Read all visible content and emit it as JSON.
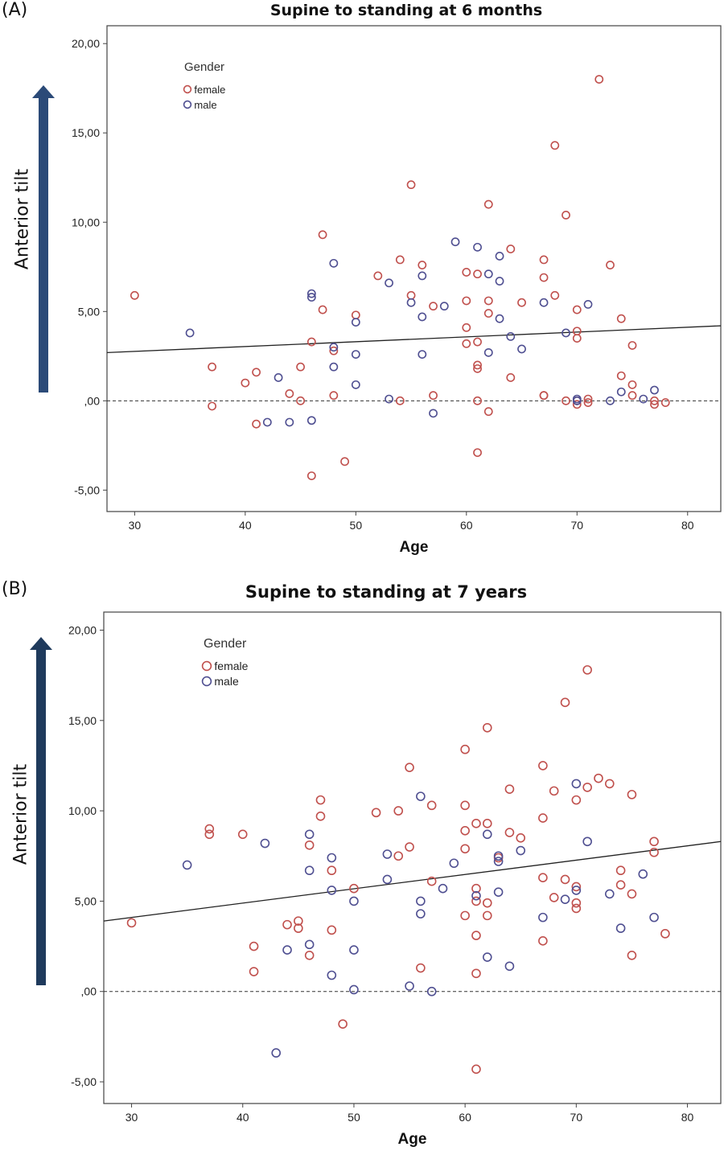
{
  "colors": {
    "female": "#c0504d",
    "male": "#4f4f91",
    "arrow_a": "#2b4a78",
    "arrow_b": "#1f3a5c"
  },
  "chart_data": [
    {
      "panel_label": "(A)",
      "type": "scatter",
      "title": "Supine to standing at 6 months",
      "xlabel": "Age",
      "ylabel": "Anterior tilt",
      "xlim": [
        27.5,
        83
      ],
      "ylim": [
        -6.2,
        21
      ],
      "x_ticks": [
        "30",
        "40",
        "50",
        "60",
        "70",
        "80"
      ],
      "x_tick_values": [
        30,
        40,
        50,
        60,
        70,
        80
      ],
      "y_ticks": [
        "-5,00",
        ",00",
        "5,00",
        "10,00",
        "15,00",
        "20,00"
      ],
      "y_tick_values": [
        -5,
        0,
        5,
        10,
        15,
        20
      ],
      "legend": {
        "title": "Gender",
        "entries": [
          "female",
          "male"
        ],
        "position": "top-left"
      },
      "fit_line": {
        "x": [
          27.5,
          83
        ],
        "y": [
          2.7,
          4.2
        ]
      },
      "reference_line": {
        "y": 0,
        "style": "dashed"
      },
      "grid": false,
      "series": [
        {
          "name": "female",
          "points": [
            [
              30,
              5.9
            ],
            [
              37,
              1.9
            ],
            [
              37,
              -0.3
            ],
            [
              40,
              1.0
            ],
            [
              41,
              1.6
            ],
            [
              41,
              -1.3
            ],
            [
              44,
              0.4
            ],
            [
              45,
              0.0
            ],
            [
              45,
              1.9
            ],
            [
              46,
              -4.2
            ],
            [
              46,
              3.3
            ],
            [
              47,
              9.3
            ],
            [
              47,
              5.1
            ],
            [
              48,
              2.8
            ],
            [
              48,
              0.3
            ],
            [
              49,
              -3.4
            ],
            [
              50,
              4.8
            ],
            [
              52,
              7.0
            ],
            [
              54,
              7.9
            ],
            [
              54,
              0.0
            ],
            [
              55,
              12.1
            ],
            [
              55,
              5.9
            ],
            [
              56,
              7.6
            ],
            [
              57,
              5.3
            ],
            [
              57,
              0.3
            ],
            [
              60,
              7.2
            ],
            [
              60,
              5.6
            ],
            [
              60,
              4.1
            ],
            [
              60,
              3.2
            ],
            [
              61,
              7.1
            ],
            [
              61,
              3.3
            ],
            [
              61,
              2.0
            ],
            [
              61,
              1.8
            ],
            [
              61,
              0.0
            ],
            [
              61,
              -2.9
            ],
            [
              62,
              11.0
            ],
            [
              62,
              5.6
            ],
            [
              62,
              4.9
            ],
            [
              62,
              -0.6
            ],
            [
              64,
              8.5
            ],
            [
              64,
              1.3
            ],
            [
              65,
              5.5
            ],
            [
              67,
              7.9
            ],
            [
              67,
              6.9
            ],
            [
              67,
              0.3
            ],
            [
              67,
              0.3
            ],
            [
              68,
              14.3
            ],
            [
              68,
              5.9
            ],
            [
              69,
              10.4
            ],
            [
              69,
              0.0
            ],
            [
              70,
              5.1
            ],
            [
              70,
              3.9
            ],
            [
              70,
              3.5
            ],
            [
              70,
              0.0
            ],
            [
              70,
              -0.2
            ],
            [
              71,
              0.1
            ],
            [
              71,
              -0.1
            ],
            [
              72,
              18.0
            ],
            [
              73,
              7.6
            ],
            [
              74,
              4.6
            ],
            [
              74,
              1.4
            ],
            [
              75,
              3.1
            ],
            [
              75,
              0.9
            ],
            [
              75,
              0.3
            ],
            [
              77,
              0.0
            ],
            [
              77,
              -0.2
            ],
            [
              78,
              -0.1
            ]
          ]
        },
        {
          "name": "male",
          "points": [
            [
              35,
              3.8
            ],
            [
              42,
              -1.2
            ],
            [
              43,
              1.3
            ],
            [
              44,
              -1.2
            ],
            [
              46,
              6.0
            ],
            [
              46,
              5.8
            ],
            [
              46,
              -1.1
            ],
            [
              48,
              7.7
            ],
            [
              48,
              3.0
            ],
            [
              48,
              1.9
            ],
            [
              50,
              4.4
            ],
            [
              50,
              2.6
            ],
            [
              50,
              0.9
            ],
            [
              53,
              6.6
            ],
            [
              53,
              0.1
            ],
            [
              55,
              5.5
            ],
            [
              56,
              7.0
            ],
            [
              56,
              4.7
            ],
            [
              56,
              2.6
            ],
            [
              57,
              -0.7
            ],
            [
              58,
              5.3
            ],
            [
              59,
              8.9
            ],
            [
              61,
              8.6
            ],
            [
              62,
              7.1
            ],
            [
              62,
              2.7
            ],
            [
              63,
              8.1
            ],
            [
              63,
              6.7
            ],
            [
              63,
              4.6
            ],
            [
              64,
              3.6
            ],
            [
              65,
              2.9
            ],
            [
              67,
              5.5
            ],
            [
              69,
              3.8
            ],
            [
              70,
              0.1
            ],
            [
              70,
              0.0
            ],
            [
              71,
              5.4
            ],
            [
              73,
              0.0
            ],
            [
              74,
              0.5
            ],
            [
              76,
              0.1
            ],
            [
              77,
              0.6
            ]
          ]
        }
      ]
    },
    {
      "panel_label": "(B)",
      "type": "scatter",
      "title": "Supine to standing at 7 years",
      "xlabel": "Age",
      "ylabel": "Anterior tilt",
      "xlim": [
        27.5,
        83
      ],
      "ylim": [
        -6.2,
        21
      ],
      "x_ticks": [
        "30",
        "40",
        "50",
        "60",
        "70",
        "80"
      ],
      "x_tick_values": [
        30,
        40,
        50,
        60,
        70,
        80
      ],
      "y_ticks": [
        "-5,00",
        ",00",
        "5,00",
        "10,00",
        "15,00",
        "20,00"
      ],
      "y_tick_values": [
        -5,
        0,
        5,
        10,
        15,
        20
      ],
      "legend": {
        "title": "Gender",
        "entries": [
          "female",
          "male"
        ],
        "position": "top-left"
      },
      "fit_line": {
        "x": [
          27.5,
          83
        ],
        "y": [
          3.9,
          8.3
        ]
      },
      "reference_line": {
        "y": 0,
        "style": "dashed"
      },
      "grid": false,
      "series": [
        {
          "name": "female",
          "points": [
            [
              30,
              3.8
            ],
            [
              37,
              9.0
            ],
            [
              37,
              8.7
            ],
            [
              40,
              8.7
            ],
            [
              41,
              2.5
            ],
            [
              41,
              1.1
            ],
            [
              44,
              3.7
            ],
            [
              45,
              3.9
            ],
            [
              45,
              3.5
            ],
            [
              46,
              8.1
            ],
            [
              46,
              2.0
            ],
            [
              47,
              10.6
            ],
            [
              47,
              9.7
            ],
            [
              48,
              6.7
            ],
            [
              48,
              3.4
            ],
            [
              49,
              -1.8
            ],
            [
              50,
              5.7
            ],
            [
              52,
              9.9
            ],
            [
              54,
              10.0
            ],
            [
              54,
              7.5
            ],
            [
              55,
              12.4
            ],
            [
              55,
              8.0
            ],
            [
              56,
              1.3
            ],
            [
              57,
              10.3
            ],
            [
              57,
              6.1
            ],
            [
              60,
              13.4
            ],
            [
              60,
              10.3
            ],
            [
              60,
              8.9
            ],
            [
              60,
              7.9
            ],
            [
              60,
              4.2
            ],
            [
              61,
              9.3
            ],
            [
              61,
              5.7
            ],
            [
              61,
              5.0
            ],
            [
              61,
              3.1
            ],
            [
              61,
              1.0
            ],
            [
              61,
              -4.3
            ],
            [
              62,
              14.6
            ],
            [
              62,
              9.3
            ],
            [
              62,
              4.9
            ],
            [
              62,
              4.2
            ],
            [
              63,
              7.4
            ],
            [
              64,
              11.2
            ],
            [
              64,
              8.8
            ],
            [
              65,
              8.5
            ],
            [
              67,
              12.5
            ],
            [
              67,
              9.6
            ],
            [
              67,
              6.3
            ],
            [
              67,
              2.8
            ],
            [
              68,
              11.1
            ],
            [
              68,
              5.2
            ],
            [
              69,
              16.0
            ],
            [
              69,
              6.2
            ],
            [
              70,
              10.6
            ],
            [
              70,
              5.8
            ],
            [
              70,
              4.9
            ],
            [
              70,
              4.6
            ],
            [
              71,
              17.8
            ],
            [
              71,
              11.3
            ],
            [
              72,
              11.8
            ],
            [
              73,
              11.5
            ],
            [
              74,
              6.7
            ],
            [
              74,
              5.9
            ],
            [
              75,
              10.9
            ],
            [
              75,
              5.4
            ],
            [
              75,
              2.0
            ],
            [
              77,
              8.3
            ],
            [
              77,
              7.7
            ],
            [
              78,
              3.2
            ]
          ]
        },
        {
          "name": "male",
          "points": [
            [
              35,
              7.0
            ],
            [
              42,
              8.2
            ],
            [
              43,
              -3.4
            ],
            [
              44,
              2.3
            ],
            [
              46,
              8.7
            ],
            [
              46,
              6.7
            ],
            [
              46,
              2.6
            ],
            [
              48,
              7.4
            ],
            [
              48,
              5.6
            ],
            [
              48,
              0.9
            ],
            [
              50,
              5.0
            ],
            [
              50,
              2.3
            ],
            [
              50,
              0.1
            ],
            [
              53,
              7.6
            ],
            [
              53,
              6.2
            ],
            [
              55,
              0.3
            ],
            [
              56,
              10.8
            ],
            [
              56,
              5.0
            ],
            [
              56,
              4.3
            ],
            [
              57,
              0.0
            ],
            [
              58,
              5.7
            ],
            [
              59,
              7.1
            ],
            [
              61,
              5.3
            ],
            [
              62,
              8.7
            ],
            [
              62,
              1.9
            ],
            [
              63,
              7.5
            ],
            [
              63,
              7.2
            ],
            [
              63,
              5.5
            ],
            [
              64,
              1.4
            ],
            [
              65,
              7.8
            ],
            [
              67,
              4.1
            ],
            [
              69,
              5.1
            ],
            [
              70,
              11.5
            ],
            [
              70,
              5.6
            ],
            [
              71,
              8.3
            ],
            [
              73,
              5.4
            ],
            [
              74,
              3.5
            ],
            [
              76,
              6.5
            ],
            [
              77,
              4.1
            ]
          ]
        }
      ]
    }
  ]
}
